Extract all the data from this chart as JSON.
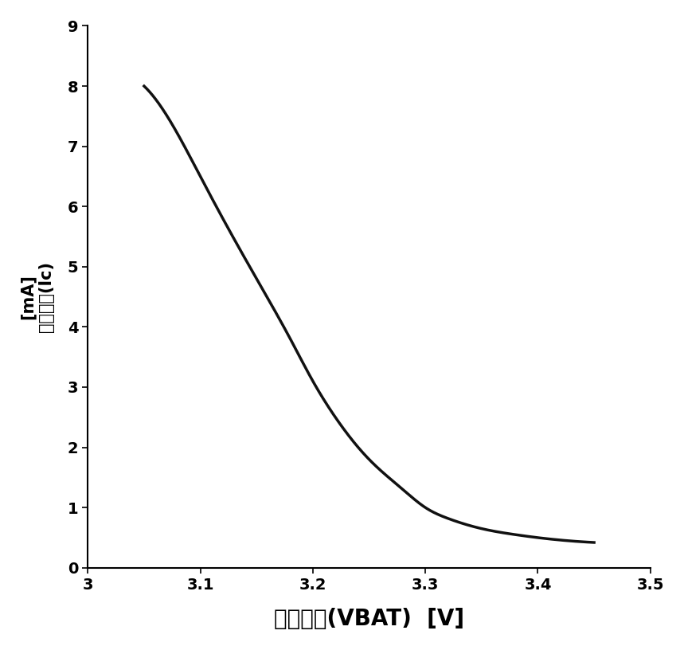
{
  "xlabel": "电源电压(VBAT)  [V]",
  "ylabel_top": "[mA]",
  "ylabel_bottom": "补偿电流(Ic)",
  "xlim": [
    3.0,
    3.5
  ],
  "ylim": [
    0,
    9
  ],
  "xticks": [
    3.0,
    3.1,
    3.2,
    3.3,
    3.4,
    3.5
  ],
  "yticks": [
    0,
    1,
    2,
    3,
    4,
    5,
    6,
    7,
    8,
    9
  ],
  "curve_points_x": [
    3.05,
    3.08,
    3.1,
    3.12,
    3.15,
    3.18,
    3.2,
    3.22,
    3.25,
    3.28,
    3.3,
    3.32,
    3.35,
    3.38,
    3.4,
    3.42,
    3.45
  ],
  "curve_points_y": [
    8.0,
    7.2,
    6.5,
    5.8,
    4.8,
    3.8,
    3.1,
    2.5,
    1.8,
    1.3,
    1.0,
    0.82,
    0.65,
    0.55,
    0.5,
    0.46,
    0.42
  ],
  "line_color": "#111111",
  "line_width": 2.5,
  "background_color": "#ffffff",
  "font_size_ticks": 14,
  "font_size_xlabel": 20,
  "font_size_ylabel": 15
}
